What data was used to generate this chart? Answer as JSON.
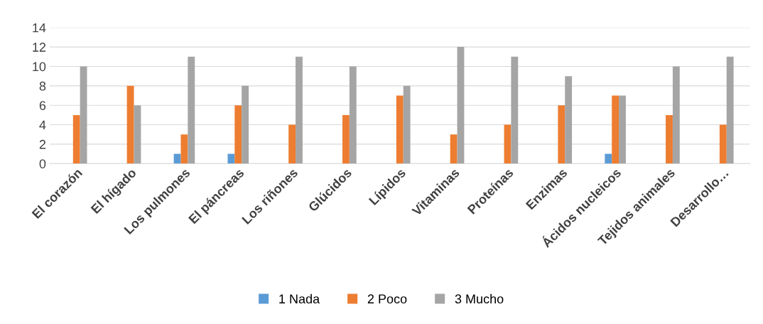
{
  "chart_data": {
    "type": "bar",
    "categories": [
      "El corazón",
      "El hígado",
      "Los pulmones",
      "El páncreas",
      "Los riñones",
      "Glúcidos",
      "Lípidos",
      "Vitaminas",
      "Proteínas",
      "Enzimas",
      "Ácidos nucleicos",
      "Tejidos animales",
      "Desarrollo…"
    ],
    "series": [
      {
        "name": "1 Nada",
        "color": "#5b9bd5",
        "values": [
          0,
          0,
          1,
          1,
          0,
          0,
          0,
          0,
          0,
          0,
          1,
          0,
          0
        ]
      },
      {
        "name": "2 Poco",
        "color": "#ed7d31",
        "values": [
          5,
          8,
          3,
          6,
          4,
          5,
          7,
          3,
          4,
          6,
          7,
          5,
          4
        ]
      },
      {
        "name": "3 Mucho",
        "color": "#a5a5a5",
        "values": [
          10,
          6,
          11,
          8,
          11,
          10,
          8,
          12,
          11,
          9,
          7,
          10,
          11
        ]
      }
    ],
    "ylim": [
      0,
      14
    ],
    "yticks": [
      0,
      2,
      4,
      6,
      8,
      10,
      12,
      14
    ],
    "grid": "y",
    "legend": "bottom"
  }
}
